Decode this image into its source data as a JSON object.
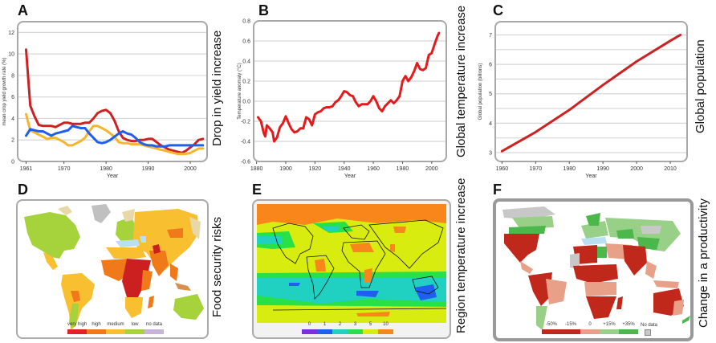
{
  "panels": {
    "A": {
      "letter": "A",
      "side_label": "Drop in yield increase"
    },
    "B": {
      "letter": "B",
      "side_label": "Global temperature increase"
    },
    "C": {
      "letter": "C",
      "side_label": "Global population"
    },
    "D": {
      "letter": "D",
      "side_label": "Food security risks"
    },
    "E": {
      "letter": "E",
      "side_label": "Region temperature increase"
    },
    "F": {
      "letter": "F",
      "side_label": "Change in a productivity"
    }
  },
  "chart_data": [
    {
      "id": "A",
      "type": "line",
      "title": "",
      "xlabel": "Year",
      "ylabel": "mean crop yield growth rate (%)",
      "xlim": [
        1959,
        2004
      ],
      "ylim": [
        0,
        13
      ],
      "xticks": [
        1961,
        1970,
        1980,
        1990,
        2000
      ],
      "yticks": [
        0,
        2,
        4,
        6,
        8,
        10,
        12
      ],
      "grid": true,
      "series": [
        {
          "name": "red",
          "color": "#cc2222",
          "x": [
            1961,
            1962,
            1963,
            1964,
            1965,
            1966,
            1967,
            1968,
            1969,
            1970,
            1971,
            1972,
            1973,
            1974,
            1975,
            1976,
            1977,
            1978,
            1979,
            1980,
            1981,
            1982,
            1983,
            1984,
            1985,
            1986,
            1987,
            1988,
            1989,
            1990,
            1991,
            1992,
            1993,
            1994,
            1995,
            1996,
            1997,
            1998,
            1999,
            2000,
            2001,
            2002,
            2003
          ],
          "y": [
            10.4,
            5.2,
            4.2,
            3.4,
            3.3,
            3.3,
            3.3,
            3.2,
            3.4,
            3.6,
            3.6,
            3.5,
            3.5,
            3.5,
            3.6,
            3.6,
            4.0,
            4.5,
            4.7,
            4.8,
            4.5,
            3.8,
            2.8,
            2.2,
            2.0,
            1.9,
            1.9,
            2.0,
            2.0,
            2.1,
            2.1,
            1.8,
            1.5,
            1.3,
            1.1,
            1.0,
            0.9,
            0.8,
            1.0,
            1.3,
            1.6,
            2.0,
            2.1
          ]
        },
        {
          "name": "yellow",
          "color": "#f5b52e",
          "x": [
            1961,
            1962,
            1963,
            1964,
            1965,
            1966,
            1967,
            1968,
            1969,
            1970,
            1971,
            1972,
            1973,
            1974,
            1975,
            1976,
            1977,
            1978,
            1979,
            1980,
            1981,
            1982,
            1983,
            1984,
            1985,
            1986,
            1987,
            1988,
            1989,
            1990,
            1991,
            1992,
            1993,
            1994,
            1995,
            1996,
            1997,
            1998,
            1999,
            2000,
            2001,
            2002,
            2003
          ],
          "y": [
            4.4,
            2.9,
            2.7,
            2.5,
            2.3,
            2.1,
            2.2,
            2.2,
            2.0,
            1.8,
            1.5,
            1.5,
            1.7,
            1.9,
            2.2,
            2.8,
            3.3,
            3.3,
            3.1,
            2.9,
            2.6,
            2.3,
            1.8,
            1.7,
            1.7,
            1.6,
            1.6,
            1.6,
            1.5,
            1.4,
            1.3,
            1.2,
            1.1,
            1.0,
            0.9,
            0.8,
            0.7,
            0.7,
            0.7,
            0.8,
            1.0,
            1.2,
            1.2
          ]
        },
        {
          "name": "blue",
          "color": "#1f5ef0",
          "x": [
            1961,
            1962,
            1963,
            1964,
            1965,
            1966,
            1967,
            1968,
            1969,
            1970,
            1971,
            1972,
            1973,
            1974,
            1975,
            1976,
            1977,
            1978,
            1979,
            1980,
            1981,
            1982,
            1983,
            1984,
            1985,
            1986,
            1987,
            1988,
            1989,
            1990,
            1991,
            1992,
            1993,
            1994,
            1995,
            1996,
            1997,
            1998,
            1999,
            2000,
            2001,
            2002,
            2003
          ],
          "y": [
            2.4,
            3.0,
            2.9,
            2.8,
            2.8,
            2.6,
            2.4,
            2.6,
            2.7,
            2.8,
            2.9,
            3.3,
            3.2,
            3.1,
            3.1,
            2.6,
            2.2,
            1.8,
            1.7,
            1.8,
            2.0,
            2.3,
            2.6,
            2.8,
            2.6,
            2.5,
            2.2,
            1.8,
            1.6,
            1.5,
            1.5,
            1.4,
            1.4,
            1.4,
            1.5,
            1.5,
            1.5,
            1.5,
            1.5,
            1.5,
            1.5,
            1.5,
            1.5
          ]
        }
      ]
    },
    {
      "id": "B",
      "type": "line",
      "title": "",
      "xlabel": "Year",
      "ylabel": "Temperature anomaly (°C)",
      "xlim": [
        1878,
        2010
      ],
      "ylim": [
        -0.6,
        0.8
      ],
      "xticks": [
        1880,
        1900,
        1920,
        1940,
        1960,
        1980,
        2000
      ],
      "yticks": [
        -0.6,
        -0.4,
        -0.2,
        0.0,
        0.2,
        0.4,
        0.6,
        0.8
      ],
      "ytick_labels": [
        "-0.6",
        "-0.4",
        "-0.2",
        "0.0",
        "0.2",
        "0.4",
        "0.6",
        "0.8"
      ],
      "grid": true,
      "series": [
        {
          "name": "temperature anomaly",
          "color": "#e41a1c",
          "x": [
            1881,
            1883,
            1885,
            1886,
            1887,
            1889,
            1890,
            1891,
            1892,
            1894,
            1896,
            1898,
            1900,
            1902,
            1904,
            1906,
            1908,
            1910,
            1912,
            1914,
            1916,
            1918,
            1920,
            1922,
            1924,
            1926,
            1928,
            1930,
            1932,
            1934,
            1936,
            1938,
            1940,
            1942,
            1944,
            1946,
            1948,
            1950,
            1952,
            1954,
            1956,
            1958,
            1960,
            1962,
            1964,
            1966,
            1968,
            1970,
            1972,
            1974,
            1976,
            1978,
            1980,
            1982,
            1984,
            1986,
            1988,
            1990,
            1992,
            1994,
            1996,
            1998,
            2000,
            2002,
            2004,
            2005
          ],
          "y": [
            -0.16,
            -0.2,
            -0.32,
            -0.35,
            -0.24,
            -0.27,
            -0.29,
            -0.31,
            -0.4,
            -0.36,
            -0.26,
            -0.22,
            -0.15,
            -0.22,
            -0.28,
            -0.31,
            -0.3,
            -0.27,
            -0.27,
            -0.16,
            -0.18,
            -0.24,
            -0.13,
            -0.11,
            -0.1,
            -0.07,
            -0.06,
            -0.06,
            -0.05,
            -0.01,
            0.01,
            0.05,
            0.1,
            0.09,
            0.06,
            0.05,
            -0.01,
            -0.05,
            -0.03,
            -0.03,
            -0.03,
            0.0,
            0.05,
            0.0,
            -0.07,
            -0.1,
            -0.05,
            -0.02,
            0.01,
            -0.02,
            0.01,
            0.05,
            0.2,
            0.25,
            0.2,
            0.24,
            0.3,
            0.38,
            0.32,
            0.31,
            0.33,
            0.46,
            0.48,
            0.57,
            0.65,
            0.68
          ]
        }
      ]
    },
    {
      "id": "C",
      "type": "line",
      "title": "",
      "xlabel": "Year",
      "ylabel": "Global population (billions)",
      "xlim": [
        1958,
        2015
      ],
      "ylim": [
        2.7,
        7.45
      ],
      "xticks": [
        1960,
        1970,
        1980,
        1990,
        2000,
        2010
      ],
      "yticks": [
        3,
        4,
        5,
        6,
        7
      ],
      "grid": true,
      "series": [
        {
          "name": "population",
          "color": "#cc2222",
          "x": [
            1960,
            1970,
            1980,
            1990,
            2000,
            2010,
            2013
          ],
          "y": [
            3.05,
            3.7,
            4.45,
            5.3,
            6.1,
            6.8,
            7.0
          ]
        }
      ]
    }
  ],
  "maps": {
    "D": {
      "legend": [
        {
          "label": "very high",
          "color": "#e3202b"
        },
        {
          "label": "high",
          "color": "#f07a1a"
        },
        {
          "label": "medium",
          "color": "#f8c030"
        },
        {
          "label": "low",
          "color": "#a6d23c"
        },
        {
          "label": "no data",
          "color": "#c8b4d8"
        }
      ],
      "colors": {
        "ocean": "#ffffff",
        "water": "#b8e0f0",
        "greenland": "#c0c0c0",
        "tundra": "#e8d8a8"
      }
    },
    "E": {
      "legend": [
        {
          "label": "0",
          "color": "#7a2ee0"
        },
        {
          "label": "1",
          "color": "#1e5ef0"
        },
        {
          "label": "2",
          "color": "#20d0c0"
        },
        {
          "label": "3",
          "color": "#28e048"
        },
        {
          "label": "5",
          "color": "#d8ec10"
        },
        {
          "label": "10",
          "color": "#f8861a"
        }
      ]
    },
    "F": {
      "legend": [
        {
          "label": "-50%",
          "color": "#c0281c"
        },
        {
          "label": "-15%",
          "color": "#c0281c"
        },
        {
          "label": "0",
          "color": "#e8a088"
        },
        {
          "label": "+15%",
          "color": "#98d088"
        },
        {
          "label": "+35%",
          "color": "#4cb84c"
        }
      ],
      "no_data_label": "No data",
      "no_data_color": "#c8c8c8"
    }
  }
}
